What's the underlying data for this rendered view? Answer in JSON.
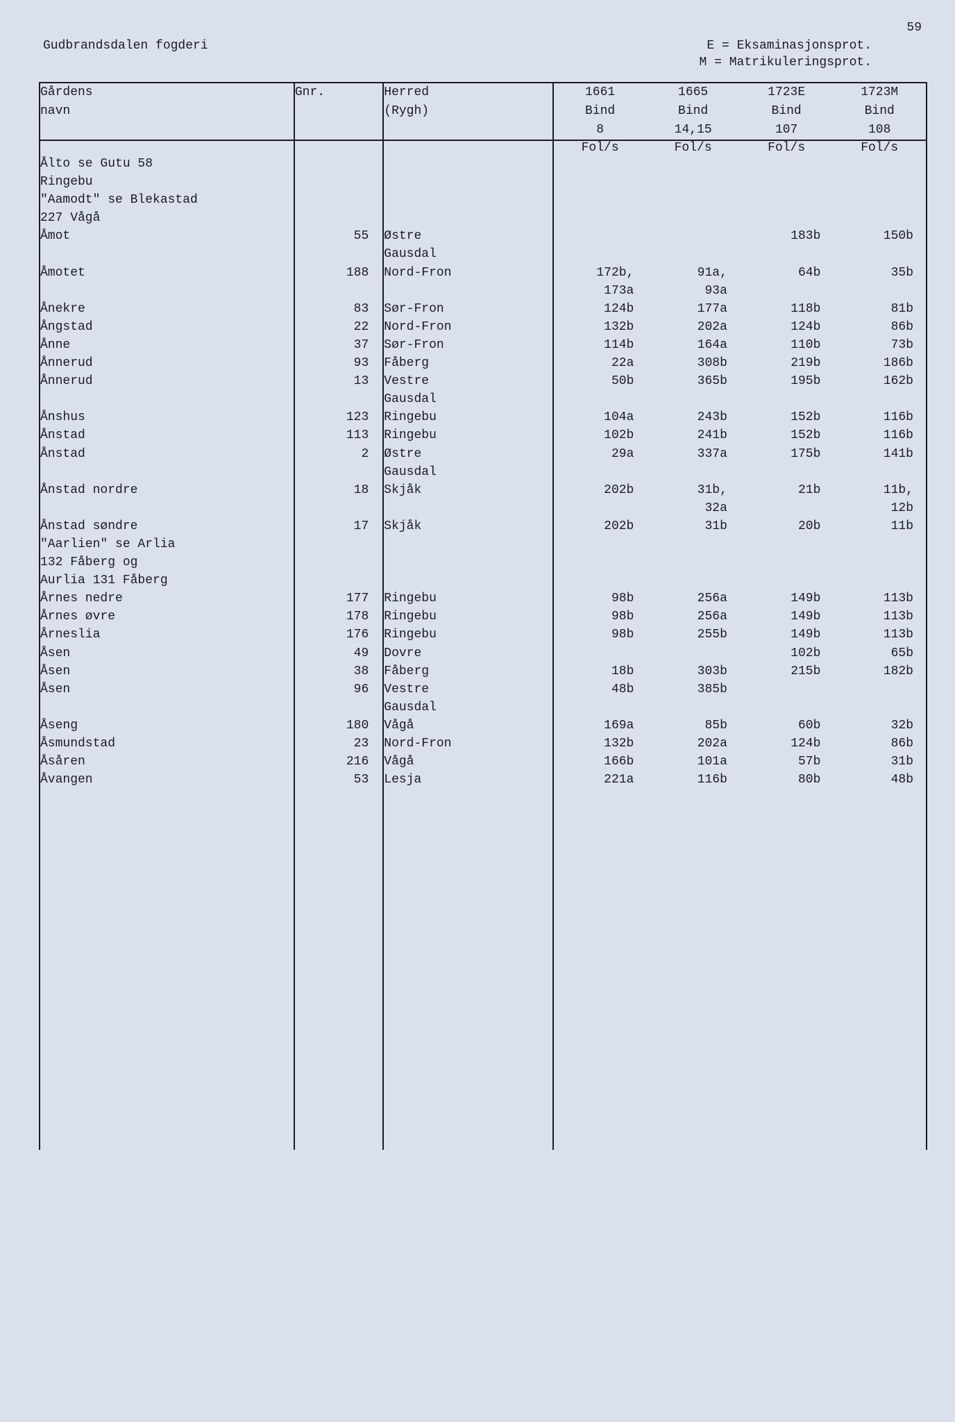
{
  "page_number": "59",
  "fogderi": "Gudbrandsdalen fogderi",
  "legend_e": "E = Eksaminasjonsprot.",
  "legend_m": "M = Matrikuleringsprot.",
  "columns": {
    "name": "Gårdens\nnavn",
    "gnr": "Gnr.",
    "herred": "Herred\n(Rygh)",
    "b1661_h": "1661\nBind",
    "b1665_h": "1665\nBind",
    "b1723e_h": "1723E\nBind",
    "b1723m_h": "1723M\nBind",
    "b1661_n": "8",
    "b1665_n": "14,15",
    "b1723e_n": "107",
    "b1723m_n": "108",
    "fols": "Fol/s"
  },
  "note1": "Ålto se Gutu 58\nRingebu",
  "note2": "\"Aamodt\" se Blekastad\n227 Vågå",
  "note3": "\"Aarlien\" se Arlia\n132 Fåberg og\nAurlia 131 Fåberg",
  "rows": [
    {
      "name": "Åmot",
      "gnr": "55",
      "herred": "Østre\nGausdal",
      "b1": "",
      "b2": "",
      "b3": "183b",
      "b4": "150b"
    },
    {
      "name": "Åmotet",
      "gnr": "188",
      "herred": "Nord-Fron",
      "b1": "172b,\n173a",
      "b2": "91a,\n93a",
      "b3": "64b",
      "b4": "35b"
    },
    {
      "name": "Ånekre",
      "gnr": "83",
      "herred": "Sør-Fron",
      "b1": "124b",
      "b2": "177a",
      "b3": "118b",
      "b4": "81b"
    },
    {
      "name": "Ångstad",
      "gnr": "22",
      "herred": "Nord-Fron",
      "b1": "132b",
      "b2": "202a",
      "b3": "124b",
      "b4": "86b"
    },
    {
      "name": "Ånne",
      "gnr": "37",
      "herred": "Sør-Fron",
      "b1": "114b",
      "b2": "164a",
      "b3": "110b",
      "b4": "73b"
    },
    {
      "name": "Ånnerud",
      "gnr": "93",
      "herred": "Fåberg",
      "b1": "22a",
      "b2": "308b",
      "b3": "219b",
      "b4": "186b"
    },
    {
      "name": "Ånnerud",
      "gnr": "13",
      "herred": "Vestre\nGausdal",
      "b1": "50b",
      "b2": "365b",
      "b3": "195b",
      "b4": "162b"
    },
    {
      "name": "Ånshus",
      "gnr": "123",
      "herred": "Ringebu",
      "b1": "104a",
      "b2": "243b",
      "b3": "152b",
      "b4": "116b"
    },
    {
      "name": "Ånstad",
      "gnr": "113",
      "herred": "Ringebu",
      "b1": "102b",
      "b2": "241b",
      "b3": "152b",
      "b4": "116b"
    },
    {
      "name": "Ånstad",
      "gnr": "2",
      "herred": "Østre\nGausdal",
      "b1": "29a",
      "b2": "337a",
      "b3": "175b",
      "b4": "141b"
    },
    {
      "name": "Ånstad nordre",
      "gnr": "18",
      "herred": "Skjåk",
      "b1": "202b",
      "b2": "31b,\n32a",
      "b3": "21b",
      "b4": "11b,\n12b"
    },
    {
      "name": "Ånstad søndre",
      "gnr": "17",
      "herred": "Skjåk",
      "b1": "202b",
      "b2": "31b",
      "b3": "20b",
      "b4": "11b"
    },
    {
      "name": "Årnes nedre",
      "gnr": "177",
      "herred": "Ringebu",
      "b1": "98b",
      "b2": "256a",
      "b3": "149b",
      "b4": "113b"
    },
    {
      "name": "Årnes øvre",
      "gnr": "178",
      "herred": "Ringebu",
      "b1": "98b",
      "b2": "256a",
      "b3": "149b",
      "b4": "113b"
    },
    {
      "name": "Årneslia",
      "gnr": "176",
      "herred": "Ringebu",
      "b1": "98b",
      "b2": "255b",
      "b3": "149b",
      "b4": "113b"
    },
    {
      "name": "Åsen",
      "gnr": "49",
      "herred": "Dovre",
      "b1": "",
      "b2": "",
      "b3": "102b",
      "b4": "65b"
    },
    {
      "name": "Åsen",
      "gnr": "38",
      "herred": "Fåberg",
      "b1": "18b",
      "b2": "303b",
      "b3": "215b",
      "b4": "182b"
    },
    {
      "name": "Åsen",
      "gnr": "96",
      "herred": "Vestre\nGausdal",
      "b1": "48b",
      "b2": "385b",
      "b3": "",
      "b4": ""
    },
    {
      "name": "Åseng",
      "gnr": "180",
      "herred": "Vågå",
      "b1": "169a",
      "b2": "85b",
      "b3": "60b",
      "b4": "32b"
    },
    {
      "name": "Åsmundstad",
      "gnr": "23",
      "herred": "Nord-Fron",
      "b1": "132b",
      "b2": "202a",
      "b3": "124b",
      "b4": "86b"
    },
    {
      "name": "Åsåren",
      "gnr": "216",
      "herred": "Vågå",
      "b1": "166b",
      "b2": "101a",
      "b3": "57b",
      "b4": "31b"
    },
    {
      "name": "Åvangen",
      "gnr": "53",
      "herred": "Lesja",
      "b1": "221a",
      "b2": "116b",
      "b3": "80b",
      "b4": "48b"
    }
  ],
  "note3_after_index": 11
}
